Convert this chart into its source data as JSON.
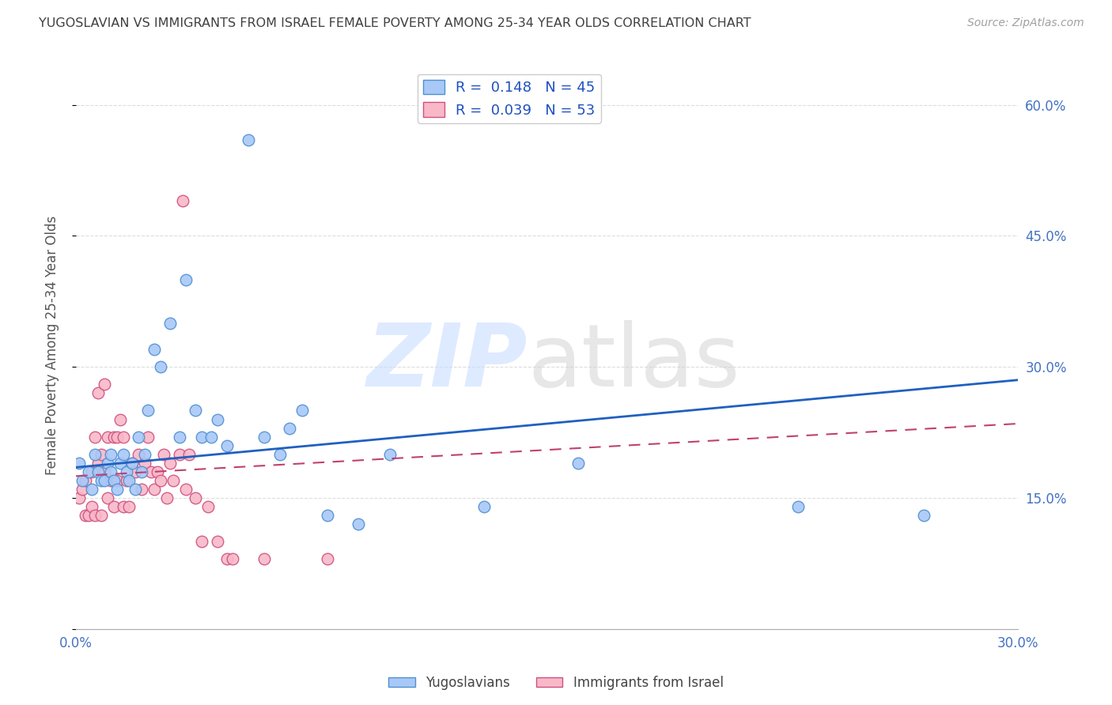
{
  "title": "YUGOSLAVIAN VS IMMIGRANTS FROM ISRAEL FEMALE POVERTY AMONG 25-34 YEAR OLDS CORRELATION CHART",
  "source": "Source: ZipAtlas.com",
  "ylabel": "Female Poverty Among 25-34 Year Olds",
  "series1_name": "Yugoslavians",
  "series2_name": "Immigrants from Israel",
  "series1_color": "#A8C8F8",
  "series2_color": "#F8B8C8",
  "series1_edge_color": "#5090D0",
  "series2_edge_color": "#D05080",
  "trendline1_color": "#2060C0",
  "trendline2_color": "#C04070",
  "background_color": "#FFFFFF",
  "xlim": [
    0.0,
    0.3
  ],
  "ylim": [
    0.0,
    0.65
  ],
  "grid_color": "#DDDDDD",
  "tick_color": "#4472C4",
  "title_color": "#404040",
  "source_color": "#A0A0A0",
  "legend_label_color": "#1E50C0",
  "series1_x": [
    0.001,
    0.002,
    0.004,
    0.005,
    0.006,
    0.007,
    0.008,
    0.009,
    0.01,
    0.011,
    0.011,
    0.012,
    0.013,
    0.014,
    0.015,
    0.016,
    0.017,
    0.018,
    0.019,
    0.02,
    0.021,
    0.022,
    0.023,
    0.025,
    0.027,
    0.03,
    0.033,
    0.035,
    0.038,
    0.04,
    0.043,
    0.045,
    0.048,
    0.055,
    0.06,
    0.065,
    0.068,
    0.072,
    0.08,
    0.09,
    0.1,
    0.13,
    0.16,
    0.23,
    0.27
  ],
  "series1_y": [
    0.19,
    0.17,
    0.18,
    0.16,
    0.2,
    0.18,
    0.17,
    0.17,
    0.19,
    0.18,
    0.2,
    0.17,
    0.16,
    0.19,
    0.2,
    0.18,
    0.17,
    0.19,
    0.16,
    0.22,
    0.18,
    0.2,
    0.25,
    0.32,
    0.3,
    0.35,
    0.22,
    0.4,
    0.25,
    0.22,
    0.22,
    0.24,
    0.21,
    0.56,
    0.22,
    0.2,
    0.23,
    0.25,
    0.13,
    0.12,
    0.2,
    0.14,
    0.19,
    0.14,
    0.13
  ],
  "series2_x": [
    0.001,
    0.002,
    0.003,
    0.003,
    0.004,
    0.005,
    0.005,
    0.006,
    0.006,
    0.007,
    0.007,
    0.008,
    0.008,
    0.009,
    0.009,
    0.01,
    0.01,
    0.011,
    0.012,
    0.012,
    0.013,
    0.013,
    0.014,
    0.015,
    0.015,
    0.016,
    0.017,
    0.018,
    0.019,
    0.02,
    0.021,
    0.022,
    0.023,
    0.024,
    0.025,
    0.026,
    0.027,
    0.028,
    0.029,
    0.03,
    0.031,
    0.033,
    0.034,
    0.035,
    0.036,
    0.038,
    0.04,
    0.042,
    0.045,
    0.048,
    0.05,
    0.06,
    0.08
  ],
  "series2_y": [
    0.15,
    0.16,
    0.13,
    0.17,
    0.13,
    0.14,
    0.18,
    0.13,
    0.22,
    0.19,
    0.27,
    0.13,
    0.2,
    0.18,
    0.28,
    0.15,
    0.22,
    0.17,
    0.14,
    0.22,
    0.17,
    0.22,
    0.24,
    0.14,
    0.22,
    0.17,
    0.14,
    0.19,
    0.18,
    0.2,
    0.16,
    0.19,
    0.22,
    0.18,
    0.16,
    0.18,
    0.17,
    0.2,
    0.15,
    0.19,
    0.17,
    0.2,
    0.49,
    0.16,
    0.2,
    0.15,
    0.1,
    0.14,
    0.1,
    0.08,
    0.08,
    0.08,
    0.08
  ],
  "trendline1_x0": 0.0,
  "trendline1_y0": 0.185,
  "trendline1_x1": 0.3,
  "trendline1_y1": 0.285,
  "trendline2_x0": 0.0,
  "trendline2_y0": 0.175,
  "trendline2_x1": 0.3,
  "trendline2_y1": 0.235,
  "watermark_zip_color": "#C8DCFF",
  "watermark_atlas_color": "#D0D0D0"
}
